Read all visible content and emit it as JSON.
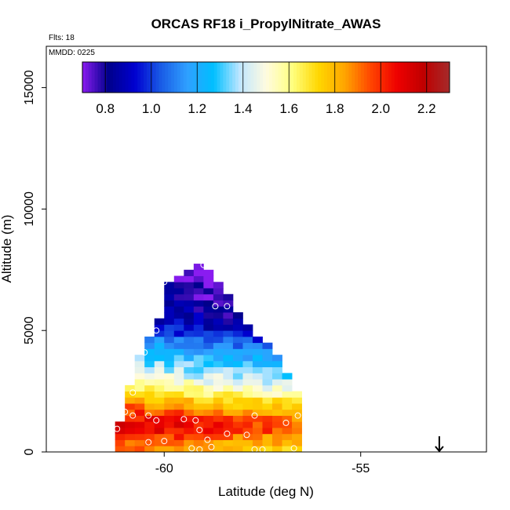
{
  "chart_data": {
    "type": "heatmap",
    "title": "ORCAS RF18 i_PropylNitrate_AWAS",
    "flights_label": "Flts: 18",
    "date_label": "MMDD: 0225",
    "xlabel": "Latitude (deg N)",
    "ylabel": "Altitude (m)",
    "xlim": [
      -63.0,
      -51.8
    ],
    "ylim": [
      0,
      16700
    ],
    "x_ticks": [
      -60,
      -55
    ],
    "x_tick_labels": [
      "-60",
      "-55"
    ],
    "y_ticks": [
      0,
      5000,
      10000,
      15000
    ],
    "y_tick_labels": [
      "0",
      "5000",
      "10000",
      "15000"
    ],
    "colorbar": {
      "range": [
        0.7,
        2.3
      ],
      "ticks": [
        0.8,
        1.0,
        1.2,
        1.4,
        1.6,
        1.8,
        2.0,
        2.2
      ],
      "tick_labels": [
        "0.8",
        "1.0",
        "1.2",
        "1.4",
        "1.6",
        "1.8",
        "2.0",
        "2.2"
      ],
      "colors": [
        "#8a1cf0",
        "#00008b",
        "#0000d0",
        "#1a5ce6",
        "#2fa0ff",
        "#00bfff",
        "#bfe6ff",
        "#fffbe0",
        "#ffff80",
        "#ffd700",
        "#ffa500",
        "#ff4500",
        "#ee0000",
        "#c00000",
        "#a52a2a"
      ]
    },
    "cell_size": {
      "dlat": 0.25,
      "dalt": 250
    },
    "profile": [
      {
        "alt": 7500,
        "lat_min": -59.2,
        "lat_max": -58.9
      },
      {
        "alt": 7000,
        "lat_min": -60.0,
        "lat_max": -58.6
      },
      {
        "alt": 6000,
        "lat_min": -60.0,
        "lat_max": -58.2
      },
      {
        "alt": 5000,
        "lat_min": -60.3,
        "lat_max": -57.8
      },
      {
        "alt": 4500,
        "lat_min": -60.5,
        "lat_max": -57.3
      },
      {
        "alt": 3500,
        "lat_min": -60.8,
        "lat_max": -57.0
      },
      {
        "alt": 2500,
        "lat_min": -60.9,
        "lat_max": -56.6
      },
      {
        "alt": 1700,
        "lat_min": -61.0,
        "lat_max": -56.5
      },
      {
        "alt": 1000,
        "lat_min": -61.2,
        "lat_max": -56.5
      },
      {
        "alt": 600,
        "lat_min": -61.3,
        "lat_max": -56.5
      },
      {
        "alt": 0,
        "lat_min": -61.3,
        "lat_max": -56.5
      }
    ],
    "vertical_profile": [
      {
        "alt": 7500,
        "value": 0.7
      },
      {
        "alt": 7000,
        "value": 0.74
      },
      {
        "alt": 6000,
        "value": 0.8
      },
      {
        "alt": 5000,
        "value": 0.92
      },
      {
        "alt": 4500,
        "value": 1.1
      },
      {
        "alt": 4000,
        "value": 1.22
      },
      {
        "alt": 3500,
        "value": 1.33
      },
      {
        "alt": 3000,
        "value": 1.45
      },
      {
        "alt": 2500,
        "value": 1.6
      },
      {
        "alt": 2000,
        "value": 1.78
      },
      {
        "alt": 1500,
        "value": 1.95
      },
      {
        "alt": 1000,
        "value": 2.05
      },
      {
        "alt": 500,
        "value": 1.9
      },
      {
        "alt": 0,
        "value": 1.8
      }
    ],
    "samples": [
      {
        "lat": -59.0,
        "alt": 7700
      },
      {
        "lat": -60.0,
        "alt": 7000
      },
      {
        "lat": -60.1,
        "alt": 5950
      },
      {
        "lat": -58.7,
        "alt": 6000
      },
      {
        "lat": -58.4,
        "alt": 6000
      },
      {
        "lat": -60.2,
        "alt": 5000
      },
      {
        "lat": -60.5,
        "alt": 4100
      },
      {
        "lat": -60.8,
        "alt": 2450
      },
      {
        "lat": -61.0,
        "alt": 1650
      },
      {
        "lat": -60.8,
        "alt": 1500
      },
      {
        "lat": -60.4,
        "alt": 1500
      },
      {
        "lat": -60.2,
        "alt": 1300
      },
      {
        "lat": -59.5,
        "alt": 1350
      },
      {
        "lat": -59.2,
        "alt": 1300
      },
      {
        "lat": -57.7,
        "alt": 1500
      },
      {
        "lat": -56.9,
        "alt": 1200
      },
      {
        "lat": -56.6,
        "alt": 1500
      },
      {
        "lat": -61.2,
        "alt": 950
      },
      {
        "lat": -59.1,
        "alt": 900
      },
      {
        "lat": -58.4,
        "alt": 750
      },
      {
        "lat": -57.9,
        "alt": 700
      },
      {
        "lat": -60.0,
        "alt": 450
      },
      {
        "lat": -60.4,
        "alt": 400
      },
      {
        "lat": -58.9,
        "alt": 500
      },
      {
        "lat": -58.8,
        "alt": 200
      },
      {
        "lat": -59.3,
        "alt": 150
      },
      {
        "lat": -59.1,
        "alt": 100
      },
      {
        "lat": -57.7,
        "alt": 100
      },
      {
        "lat": -57.5,
        "alt": 100
      },
      {
        "lat": -56.7,
        "alt": 150
      }
    ],
    "marker": {
      "type": "arrow",
      "lat": -53.0,
      "alt": 0
    }
  }
}
